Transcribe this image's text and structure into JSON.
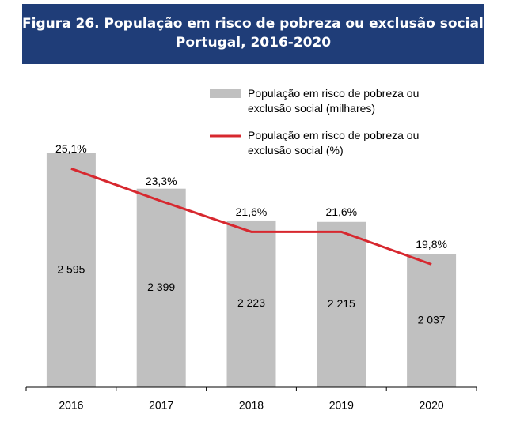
{
  "chart_data": {
    "type": "bar-line",
    "title": [
      "Figura 26. População em risco de pobreza ou exclusão social,",
      "Portugal, 2016-2020"
    ],
    "categories": [
      "2016",
      "2017",
      "2018",
      "2019",
      "2020"
    ],
    "series": [
      {
        "name": "População em risco de pobreza ou exclusão social (milhares)",
        "type": "bar",
        "color": "#c0c0c0",
        "values": [
          2595,
          2399,
          2223,
          2215,
          2037
        ],
        "value_labels": [
          "2 595",
          "2 399",
          "2 223",
          "2 215",
          "2 037"
        ]
      },
      {
        "name": "População em risco de pobreza ou exclusão social (%)",
        "type": "line",
        "color": "#d7282f",
        "axis": "y2",
        "values": [
          25.1,
          23.3,
          21.6,
          21.6,
          19.8
        ],
        "value_labels": [
          "25,1%",
          "23,3%",
          "21,6%",
          "21,6%",
          "19,8%"
        ]
      }
    ],
    "ylim": [
      1300,
      2800
    ],
    "y2lim": [
      13,
      28
    ]
  }
}
